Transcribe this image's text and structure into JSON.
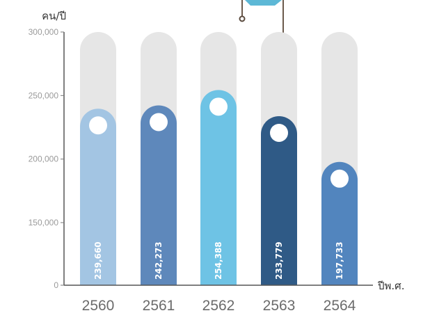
{
  "chart_data": {
    "type": "bar",
    "title": "",
    "ylabel": "คน/ปี",
    "xlabel": "ปีพ.ศ.",
    "categories": [
      "2560",
      "2561",
      "2562",
      "2563",
      "2564"
    ],
    "values": [
      239660,
      242273,
      254388,
      233779,
      197733
    ],
    "value_labels": [
      "239,660",
      "242,273",
      "254,388",
      "233,779",
      "197,733"
    ],
    "bar_colors": [
      "#a3c5e3",
      "#5e88bb",
      "#6ec3e5",
      "#2f5a86",
      "#5285be"
    ],
    "track_color": "#e6e6e6",
    "yticks": [
      0,
      150000,
      200000,
      250000,
      300000
    ],
    "ytick_labels": [
      "0",
      "150,000",
      "200,000",
      "250,000",
      "300,000"
    ],
    "ylim": [
      0,
      300000
    ],
    "grid": false,
    "legend": "none"
  }
}
